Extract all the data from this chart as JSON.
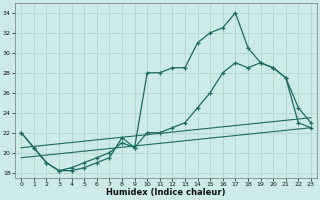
{
  "xlabel": "Humidex (Indice chaleur)",
  "background_color": "#cceae7",
  "grid_color": "#b8d8d4",
  "line_color": "#1a6b60",
  "xlim": [
    -0.5,
    23.5
  ],
  "ylim": [
    17.5,
    35.0
  ],
  "yticks": [
    18,
    20,
    22,
    24,
    26,
    28,
    30,
    32,
    34
  ],
  "xticks": [
    0,
    1,
    2,
    3,
    4,
    5,
    6,
    7,
    8,
    9,
    10,
    11,
    12,
    13,
    14,
    15,
    16,
    17,
    18,
    19,
    20,
    21,
    22,
    23
  ],
  "line1_x": [
    0,
    1,
    2,
    3,
    4,
    5,
    6,
    7,
    8,
    9,
    10,
    11,
    12,
    13,
    14,
    15,
    16,
    17,
    18,
    19,
    20,
    21,
    22,
    23
  ],
  "line1_y": [
    22,
    20.5,
    19,
    18.2,
    18.2,
    18.5,
    19,
    19.5,
    21.5,
    20.5,
    28,
    28,
    28.5,
    28.5,
    31,
    32,
    32.5,
    34,
    30.5,
    29,
    28.5,
    27.5,
    24.5,
    23
  ],
  "line2_x": [
    0,
    1,
    2,
    3,
    4,
    5,
    6,
    7,
    8,
    9,
    10,
    11,
    12,
    13,
    14,
    15,
    16,
    17,
    18,
    19,
    20,
    21,
    22,
    23
  ],
  "line2_y": [
    22,
    20.5,
    19,
    18.2,
    18.5,
    19,
    19.5,
    20,
    21,
    20.5,
    22,
    22,
    22.5,
    23.0,
    24.5,
    26,
    28,
    29,
    28.5,
    29,
    28.5,
    27.5,
    23,
    22.5
  ],
  "line3_x": [
    0,
    23
  ],
  "line3_y": [
    19.5,
    22.5
  ],
  "line4_x": [
    0,
    23
  ],
  "line4_y": [
    20.5,
    23.5
  ]
}
